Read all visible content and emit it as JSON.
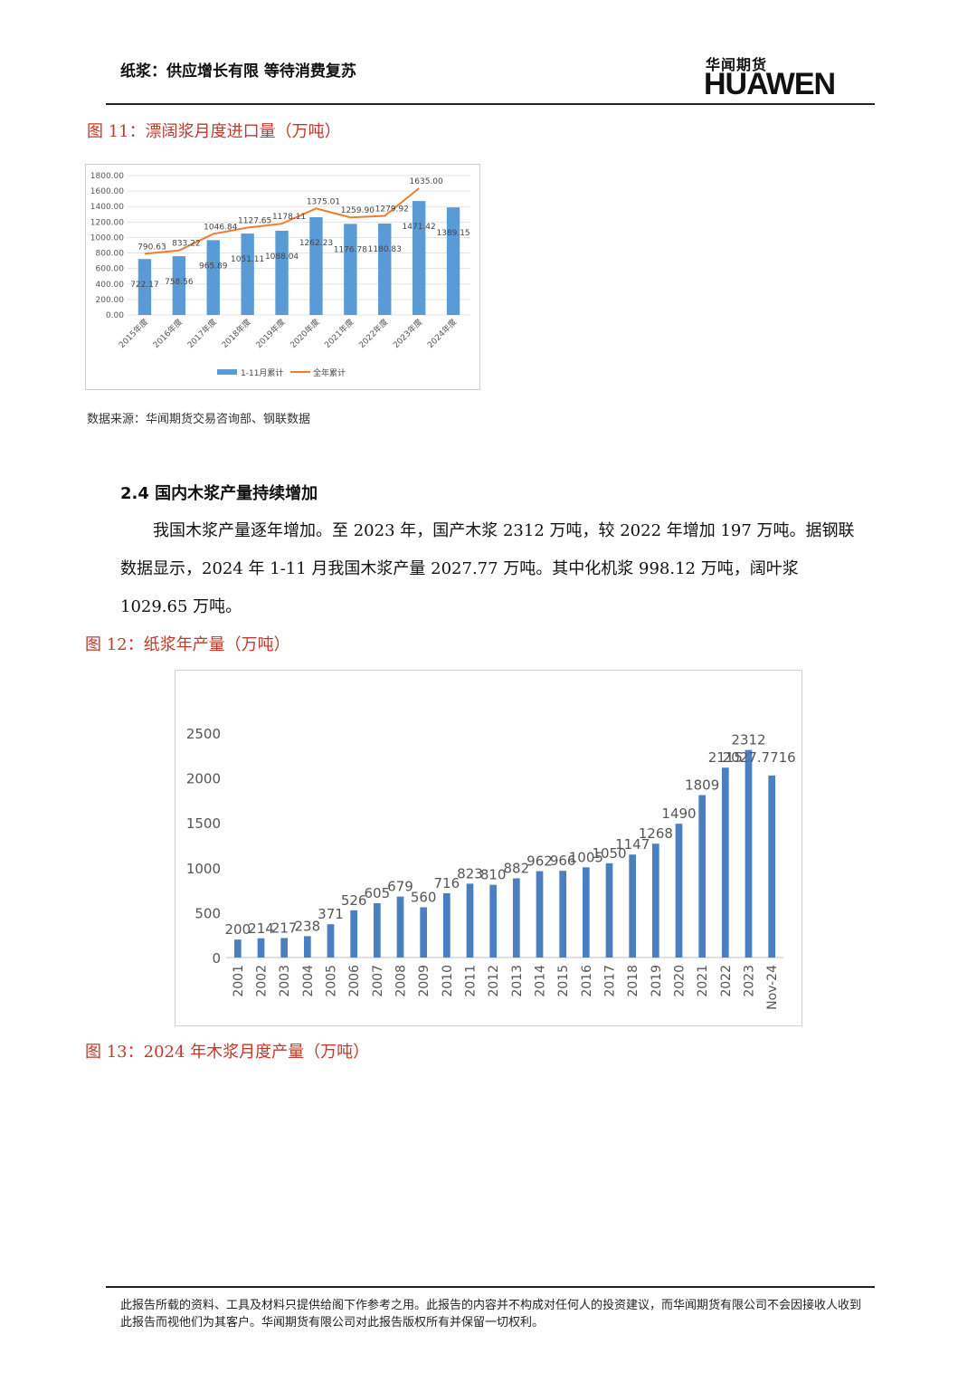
{
  "header": {
    "title": "纸浆：供应增长有限 等待消费复苏",
    "logo_cn": "华闻期货",
    "logo_en": "HUAWEN"
  },
  "figure11": {
    "title": "图 11：漂阔浆月度进口量（万吨）",
    "chart_data": {
      "type": "bar",
      "categories": [
        "2015年度",
        "2016年度",
        "2017年度",
        "2018年度",
        "2019年度",
        "2020年度",
        "2021年度",
        "2022年度",
        "2023年度",
        "2024年度"
      ],
      "series": [
        {
          "name": "1-11月累计",
          "type": "bar",
          "color": "#5b9bd5",
          "values": [
            722.17,
            758.56,
            965.89,
            1051.11,
            1088.04,
            1262.23,
            1176.78,
            1180.83,
            1471.42,
            1389.15
          ]
        },
        {
          "name": "全年累计",
          "type": "line",
          "color": "#ed7d31",
          "values": [
            790.63,
            833.22,
            1046.84,
            1127.65,
            1178.11,
            1375.01,
            1259.9,
            1279.92,
            1635.0,
            null
          ]
        }
      ],
      "bar_labels": [
        "722.17",
        "758.56",
        "965.89",
        "1051.11",
        "1088.04",
        "1262.23",
        "1176.78",
        "1180.83",
        "1471.42",
        "1389.15"
      ],
      "line_labels": [
        "790.63",
        "833.22",
        "1046.84",
        "1127.65",
        "1178.11",
        "1375.01",
        "1259.90",
        "1279.92",
        "1635.00",
        ""
      ],
      "yticks": [
        "0.00",
        "200.00",
        "400.00",
        "600.00",
        "800.00",
        "1000.00",
        "1200.00",
        "1400.00",
        "1600.00",
        "1800.00"
      ],
      "ylim": [
        0,
        1800
      ],
      "legend_position": "bottom"
    }
  },
  "source": "数据来源：华闻期货交易咨询部、钢联数据",
  "section": {
    "heading": "2.4 国内木浆产量持续增加",
    "paragraph": "我国木浆产量逐年增加。至 2023 年，国产木浆 2312 万吨，较 2022 年增加 197 万吨。据钢联数据显示，2024 年 1-11 月我国木浆产量 2027.77 万吨。其中化机浆 998.12 万吨，阔叶浆 1029.65 万吨。"
  },
  "figure12": {
    "title": "图 12：纸浆年产量（万吨）",
    "chart_data": {
      "type": "bar",
      "categories": [
        "2001",
        "2002",
        "2003",
        "2004",
        "2005",
        "2006",
        "2007",
        "2008",
        "2009",
        "2010",
        "2011",
        "2012",
        "2013",
        "2014",
        "2015",
        "2016",
        "2017",
        "2018",
        "2019",
        "2020",
        "2021",
        "2022",
        "2023",
        "Nov-24"
      ],
      "values": [
        200,
        214,
        217,
        238,
        371,
        526,
        605,
        679,
        560,
        716,
        823,
        810,
        882,
        962,
        966,
        1005,
        1050,
        1147,
        1268,
        1490,
        1809,
        2115,
        2312,
        2027.7716
      ],
      "labels": [
        "200",
        "214",
        "217",
        "238",
        "371",
        "526",
        "605",
        "679",
        "560",
        "716",
        "823",
        "810",
        "882",
        "962",
        "966",
        "1005",
        "1050",
        "1147",
        "1268",
        "1490",
        "1809",
        "2115",
        "2312",
        "2027.7716"
      ],
      "yticks": [
        "0",
        "500",
        "1000",
        "1500",
        "2000",
        "2500"
      ],
      "ylim": [
        0,
        2500
      ],
      "color": "#4a7fc1"
    }
  },
  "figure13": {
    "title": "图 13：2024 年木浆月度产量（万吨）"
  },
  "footer": {
    "disclaimer": "此报告所载的资料、工具及材料只提供给阁下作参考之用。此报告的内容并不构成对任何人的投资建议，而华闻期货有限公司不会因接收人收到此报告而视他们为其客户。华闻期货有限公司对此报告版权所有并保留一切权利。"
  }
}
